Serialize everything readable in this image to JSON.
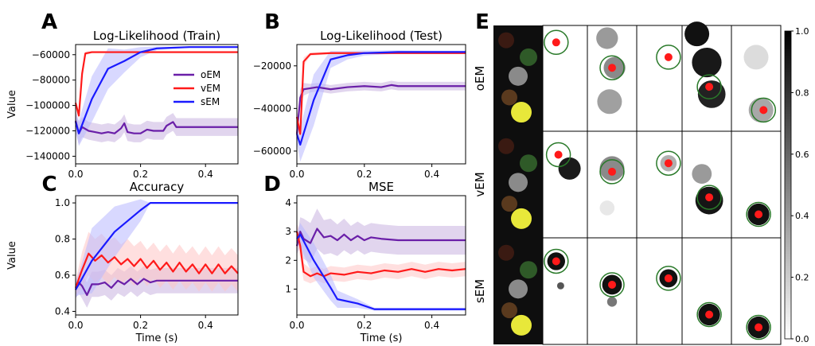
{
  "series_names": [
    "oEM",
    "vEM",
    "sEM"
  ],
  "colors": {
    "oEM": "#6a1fa8",
    "vEM": "#ff1a1a",
    "sEM": "#1a1aff",
    "oEM_band": "#c9b3e0",
    "vEM_band": "#ffc4c4",
    "sEM_band": "#b8b8ff"
  },
  "chart_data": [
    {
      "letter": "A",
      "type": "line",
      "title": "Log-Likelihood (Train)",
      "xlabel": "",
      "ylabel": "Value",
      "xlim": [
        0,
        0.5
      ],
      "ylim": [
        -146000,
        -52000
      ],
      "xticks": [
        0.0,
        0.2,
        0.4
      ],
      "xtick_labels": [
        "0.0",
        "0.2",
        "0.4"
      ],
      "yticks": [
        -140000,
        -120000,
        -100000,
        -80000,
        -60000
      ],
      "ytick_labels": [
        "−140000",
        "−120000",
        "−100000",
        "−80000",
        "−60000"
      ],
      "legend": "center-right",
      "series": [
        {
          "name": "oEM",
          "x": [
            0.0,
            0.01,
            0.02,
            0.04,
            0.06,
            0.08,
            0.1,
            0.12,
            0.14,
            0.15,
            0.16,
            0.18,
            0.2,
            0.22,
            0.24,
            0.27,
            0.28,
            0.3,
            0.31,
            0.34,
            0.4,
            0.5
          ],
          "y": [
            -112000,
            -122000,
            -117000,
            -120000,
            -121000,
            -122000,
            -121000,
            -122000,
            -118000,
            -114000,
            -121000,
            -122000,
            -122000,
            -119000,
            -120000,
            -120000,
            -116000,
            -113000,
            -117000,
            -117000,
            -117000,
            -117000
          ],
          "band": [
            9000,
            9000,
            8000,
            7000,
            7000,
            7000,
            7000,
            7000,
            7000,
            7000,
            7000,
            7000,
            7000,
            7000,
            7000,
            7000,
            7000,
            7000,
            7000,
            7000,
            7000,
            7000
          ]
        },
        {
          "name": "vEM",
          "x": [
            0.0,
            0.01,
            0.02,
            0.03,
            0.05,
            0.1,
            0.2,
            0.3,
            0.5
          ],
          "y": [
            -98000,
            -108000,
            -75000,
            -59000,
            -58000,
            -58000,
            -58000,
            -58000,
            -58000
          ],
          "band": [
            4000,
            3000,
            3000,
            1500,
            800,
            800,
            800,
            800,
            800
          ]
        },
        {
          "name": "sEM",
          "x": [
            0.0,
            0.01,
            0.05,
            0.1,
            0.15,
            0.2,
            0.25,
            0.3,
            0.35,
            0.5
          ],
          "y": [
            -113000,
            -122000,
            -95000,
            -71000,
            -65000,
            -58000,
            -55000,
            -54500,
            -54000,
            -54000
          ],
          "band": [
            6000,
            10000,
            18000,
            16000,
            9000,
            4000,
            1500,
            800,
            600,
            600
          ]
        }
      ]
    },
    {
      "letter": "B",
      "type": "line",
      "title": "Log-Likelihood (Test)",
      "xlabel": "",
      "ylabel": "",
      "xlim": [
        0,
        0.5
      ],
      "ylim": [
        -66000,
        -10000
      ],
      "xticks": [
        0.0,
        0.2,
        0.4
      ],
      "xtick_labels": [
        "0.0",
        "0.2",
        "0.4"
      ],
      "yticks": [
        -60000,
        -40000,
        -20000
      ],
      "ytick_labels": [
        "−60000",
        "−40000",
        "−20000"
      ],
      "series": [
        {
          "name": "oEM",
          "x": [
            0.0,
            0.01,
            0.02,
            0.04,
            0.06,
            0.1,
            0.15,
            0.2,
            0.25,
            0.28,
            0.3,
            0.35,
            0.5
          ],
          "y": [
            -52000,
            -35000,
            -31000,
            -30500,
            -30000,
            -31000,
            -30000,
            -29500,
            -30000,
            -29000,
            -29500,
            -29500,
            -29500
          ],
          "band": [
            4000,
            4000,
            3000,
            2000,
            2000,
            2000,
            2000,
            2000,
            2000,
            2000,
            2000,
            2000,
            2000
          ]
        },
        {
          "name": "vEM",
          "x": [
            0.0,
            0.01,
            0.02,
            0.04,
            0.1,
            0.2,
            0.3,
            0.5
          ],
          "y": [
            -44000,
            -52000,
            -18000,
            -14500,
            -14000,
            -14000,
            -14000,
            -14000
          ],
          "band": [
            3000,
            3000,
            2000,
            800,
            500,
            500,
            500,
            500
          ]
        },
        {
          "name": "sEM",
          "x": [
            0.0,
            0.01,
            0.05,
            0.1,
            0.15,
            0.2,
            0.3,
            0.4,
            0.5
          ],
          "y": [
            -52000,
            -57000,
            -36000,
            -17000,
            -15000,
            -14000,
            -13500,
            -13500,
            -13500
          ],
          "band": [
            4000,
            8000,
            12000,
            4000,
            2000,
            1200,
            800,
            600,
            600
          ]
        }
      ]
    },
    {
      "letter": "C",
      "type": "line",
      "title": "Accuracy",
      "xlabel": "Time (s)",
      "ylabel": "Value",
      "xlim": [
        0,
        0.5
      ],
      "ylim": [
        0.38,
        1.04
      ],
      "xticks": [
        0.0,
        0.2,
        0.4
      ],
      "xtick_labels": [
        "0.0",
        "0.2",
        "0.4"
      ],
      "yticks": [
        0.4,
        0.6,
        0.8,
        1.0
      ],
      "ytick_labels": [
        "0.4",
        "0.6",
        "0.8",
        "1.0"
      ],
      "series": [
        {
          "name": "oEM",
          "x": [
            0.0,
            0.01,
            0.02,
            0.035,
            0.05,
            0.07,
            0.09,
            0.11,
            0.13,
            0.15,
            0.17,
            0.19,
            0.21,
            0.23,
            0.25,
            0.3,
            0.5
          ],
          "y": [
            0.52,
            0.56,
            0.54,
            0.49,
            0.55,
            0.55,
            0.56,
            0.53,
            0.57,
            0.55,
            0.58,
            0.55,
            0.58,
            0.56,
            0.57,
            0.57,
            0.57
          ],
          "band": [
            0.05,
            0.06,
            0.07,
            0.07,
            0.07,
            0.07,
            0.07,
            0.07,
            0.07,
            0.07,
            0.07,
            0.07,
            0.07,
            0.07,
            0.07,
            0.07,
            0.07
          ]
        },
        {
          "name": "vEM",
          "x": [
            0.0,
            0.02,
            0.04,
            0.06,
            0.08,
            0.1,
            0.12,
            0.14,
            0.16,
            0.18,
            0.2,
            0.22,
            0.24,
            0.26,
            0.28,
            0.3,
            0.32,
            0.34,
            0.36,
            0.38,
            0.4,
            0.42,
            0.44,
            0.46,
            0.48,
            0.5
          ],
          "y": [
            0.53,
            0.63,
            0.72,
            0.68,
            0.71,
            0.67,
            0.7,
            0.66,
            0.69,
            0.65,
            0.69,
            0.64,
            0.68,
            0.63,
            0.67,
            0.62,
            0.67,
            0.62,
            0.66,
            0.61,
            0.66,
            0.61,
            0.66,
            0.61,
            0.65,
            0.61
          ],
          "band": [
            0.04,
            0.1,
            0.12,
            0.12,
            0.12,
            0.12,
            0.11,
            0.11,
            0.11,
            0.11,
            0.1,
            0.1,
            0.1,
            0.1,
            0.1,
            0.1,
            0.1,
            0.1,
            0.1,
            0.1,
            0.1,
            0.1,
            0.1,
            0.1,
            0.1,
            0.1
          ]
        },
        {
          "name": "sEM",
          "x": [
            0.0,
            0.01,
            0.05,
            0.12,
            0.2,
            0.23,
            0.3,
            0.5
          ],
          "y": [
            0.52,
            0.55,
            0.68,
            0.84,
            0.96,
            1.0,
            1.0,
            1.0
          ],
          "band": [
            0.04,
            0.06,
            0.18,
            0.14,
            0.06,
            0.0,
            0.0,
            0.0
          ]
        }
      ]
    },
    {
      "letter": "D",
      "type": "line",
      "title": "MSE",
      "xlabel": "Time (s)",
      "ylabel": "",
      "xlim": [
        0,
        0.5
      ],
      "ylim": [
        0.1,
        4.25
      ],
      "xticks": [
        0.0,
        0.2,
        0.4
      ],
      "xtick_labels": [
        "0.0",
        "0.2",
        "0.4"
      ],
      "yticks": [
        1,
        2,
        3,
        4
      ],
      "ytick_labels": [
        "1",
        "2",
        "3",
        "4"
      ],
      "series": [
        {
          "name": "oEM",
          "x": [
            0.0,
            0.01,
            0.02,
            0.04,
            0.06,
            0.08,
            0.1,
            0.12,
            0.14,
            0.16,
            0.18,
            0.2,
            0.22,
            0.25,
            0.3,
            0.35,
            0.5
          ],
          "y": [
            2.5,
            3.0,
            2.75,
            2.6,
            3.1,
            2.8,
            2.85,
            2.7,
            2.9,
            2.7,
            2.85,
            2.7,
            2.8,
            2.75,
            2.7,
            2.7,
            2.7
          ],
          "band": [
            0.3,
            0.5,
            0.7,
            0.7,
            0.7,
            0.6,
            0.6,
            0.55,
            0.55,
            0.5,
            0.5,
            0.5,
            0.5,
            0.5,
            0.5,
            0.5,
            0.5
          ]
        },
        {
          "name": "vEM",
          "x": [
            0.0,
            0.01,
            0.02,
            0.04,
            0.06,
            0.08,
            0.1,
            0.14,
            0.18,
            0.22,
            0.26,
            0.3,
            0.34,
            0.38,
            0.42,
            0.46,
            0.5
          ],
          "y": [
            3.0,
            2.5,
            1.6,
            1.45,
            1.55,
            1.45,
            1.55,
            1.5,
            1.6,
            1.55,
            1.65,
            1.6,
            1.7,
            1.6,
            1.7,
            1.65,
            1.7
          ],
          "band": [
            0.3,
            0.4,
            0.3,
            0.25,
            0.25,
            0.25,
            0.25,
            0.25,
            0.25,
            0.25,
            0.25,
            0.25,
            0.25,
            0.25,
            0.25,
            0.25,
            0.25
          ]
        },
        {
          "name": "sEM",
          "x": [
            0.0,
            0.01,
            0.05,
            0.1,
            0.12,
            0.18,
            0.23,
            0.3,
            0.5
          ],
          "y": [
            2.75,
            2.9,
            2.0,
            1.05,
            0.65,
            0.5,
            0.3,
            0.3,
            0.3
          ],
          "band": [
            0.2,
            0.4,
            0.6,
            0.45,
            0.3,
            0.15,
            0.05,
            0.05,
            0.05
          ]
        }
      ]
    },
    {
      "letter": "E",
      "type": "heatmap",
      "rows": [
        "oEM",
        "vEM",
        "sEM"
      ],
      "n_frames": 5,
      "colorbar": {
        "ticks": [
          0.0,
          0.2,
          0.4,
          0.6,
          0.8,
          1.0
        ],
        "tick_labels": [
          "0.0",
          "0.2",
          "0.4",
          "0.6",
          "0.8",
          "1.0"
        ]
      },
      "input_objects": [
        {
          "name": "red object",
          "color": "#3a1a12"
        },
        {
          "name": "green object",
          "color": "#2f5a28"
        },
        {
          "name": "gray object",
          "color": "#8a8a8a"
        },
        {
          "name": "brown object",
          "color": "#5a3a1e"
        },
        {
          "name": "yellow object",
          "color": "#e8e83a"
        }
      ]
    }
  ]
}
